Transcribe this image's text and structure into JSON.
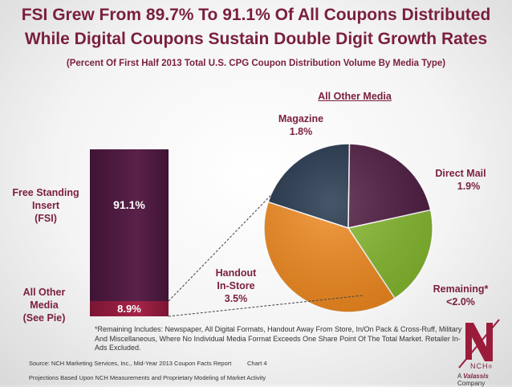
{
  "title_line1": "FSI Grew From 89.7% To 91.1% Of All Coupons Distributed",
  "title_line2": "While Digital Coupons Sustain Double Digit Growth Rates",
  "subtitle": "(Percent Of First Half 2013 Total U.S. CPG Coupon Distribution Volume By Media Type)",
  "chart_data": [
    {
      "type": "bar",
      "stacked": true,
      "categories": [
        "Free Standing Insert (FSI)",
        "All Other Media (See Pie)"
      ],
      "values": [
        91.1,
        8.9
      ],
      "value_labels": [
        "91.1%",
        "8.9%"
      ],
      "left_labels": {
        "fsi": [
          "Free Standing",
          "Insert",
          "(FSI)"
        ],
        "other": [
          "All Other",
          "Media",
          "(See Pie)"
        ]
      },
      "colors": [
        "#4d1a3f",
        "#8b1a3a"
      ],
      "ylim": [
        0,
        100
      ]
    },
    {
      "type": "pie",
      "title": "All Other Media",
      "slices": [
        {
          "name": "Magazine",
          "label": "1.8%",
          "value": 1.8,
          "color": "#1f3148"
        },
        {
          "name": "Direct Mail",
          "label": "1.9%",
          "value": 1.9,
          "color": "#4d1a3f"
        },
        {
          "name": "Remaining*",
          "label": "<2.0%",
          "value": 1.7,
          "color": "#84b82e"
        },
        {
          "name": "Handout In-Store",
          "label": "3.5%",
          "value": 3.5,
          "color": "#f0891f"
        }
      ]
    }
  ],
  "labels": {
    "magazine_name": "Magazine",
    "magazine_val": "1.8%",
    "direct_mail_name": "Direct Mail",
    "direct_mail_val": "1.9%",
    "remaining_name": "Remaining*",
    "remaining_val": "<2.0%",
    "handout_line1": "Handout",
    "handout_line2": "In-Store",
    "handout_val": "3.5%"
  },
  "note": "*Remaining Includes: Newspaper, All Digital Formats, Handout Away From Store, In/On Pack & Cross-Ruff, Military And Miscellaneous, Where No Individual Media Format Exceeds One Share Point Of The Total Market. Retailer In-Ads Excluded.",
  "source": "Source: NCH Marketing Services, Inc., Mid-Year 2013 Coupon Facts Report",
  "chart_no": "Chart 4",
  "projections": "Projections Based Upon NCH Measurements and Proprietary Modeling of Market Activity",
  "logo_text": "NCH",
  "logo_reg": "®",
  "company_prefix": "A ",
  "company_name": "Valassis",
  "company_suffix": " Company"
}
